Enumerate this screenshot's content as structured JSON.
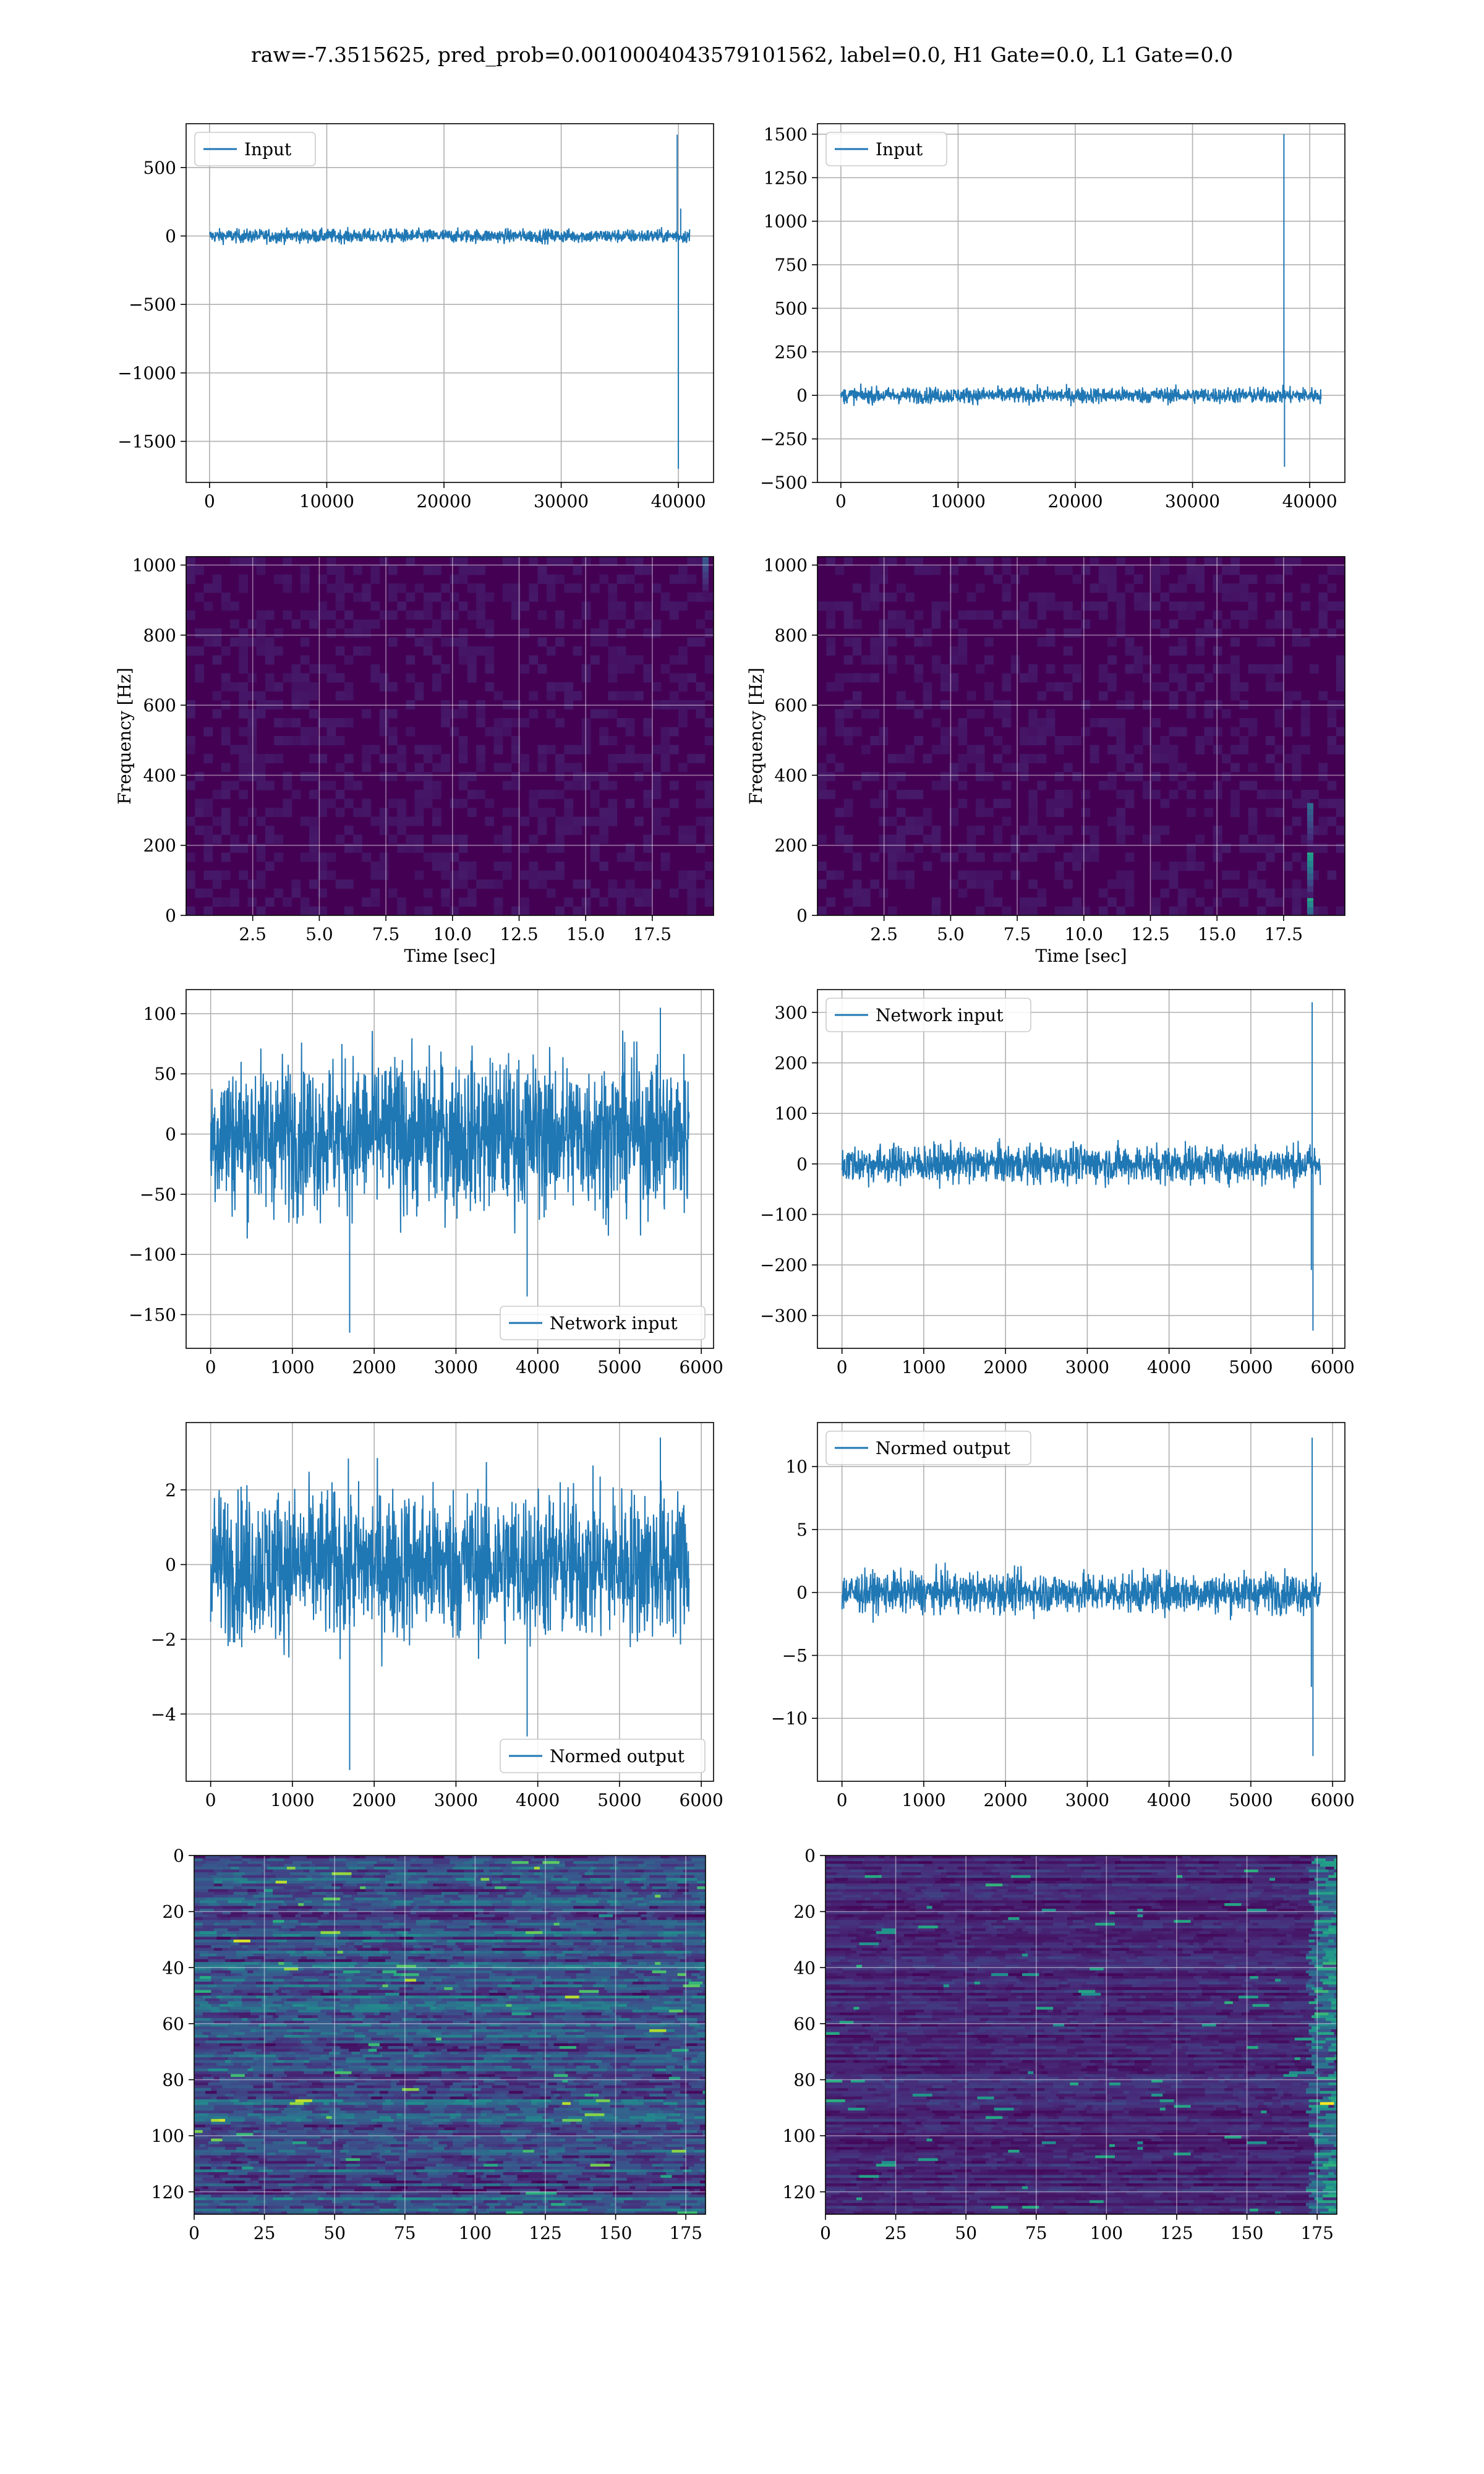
{
  "title": "raw=-7.3515625, pred_prob=0.0010004043579101562, label=0.0, H1 Gate=0.0, L1 Gate=0.0",
  "colors": {
    "line": "#1f77b4",
    "grid": "#b0b0b0",
    "viridis_dark": "#440154",
    "viridis_blue": "#3b528b",
    "viridis_teal": "#21918c",
    "viridis_green": "#5ec962",
    "viridis_yellow": "#fde725"
  },
  "chart_data": [
    {
      "id": "h1-input",
      "type": "line",
      "legend": "upper left",
      "series": [
        {
          "name": "Input",
          "x_range": [
            0,
            40960
          ],
          "noise_amplitude": 60,
          "spikes": [
            {
              "x": 39900,
              "y": 740
            },
            {
              "x": 40000,
              "y": -1700
            },
            {
              "x": 40200,
              "y": 200
            }
          ]
        }
      ],
      "xlim": [
        -2000,
        43000
      ],
      "ylim": [
        -1800,
        820
      ],
      "xticks": [
        0,
        10000,
        20000,
        30000,
        40000
      ],
      "xtick_labels": [
        "0",
        "10000",
        "20000",
        "30000",
        "40000"
      ],
      "yticks": [
        500,
        0,
        -500,
        -1000,
        -1500
      ],
      "ytick_labels": [
        "500",
        "0",
        "−500",
        "−1000",
        "−1500"
      ],
      "xlabel": "",
      "ylabel": ""
    },
    {
      "id": "l1-input",
      "type": "line",
      "legend": "upper left",
      "series": [
        {
          "name": "Input",
          "x_range": [
            0,
            40960
          ],
          "noise_amplitude": 55,
          "spikes": [
            {
              "x": 37800,
              "y": 1500
            },
            {
              "x": 37850,
              "y": -410
            }
          ]
        }
      ],
      "xlim": [
        -2000,
        43000
      ],
      "ylim": [
        -500,
        1560
      ],
      "xticks": [
        0,
        10000,
        20000,
        30000,
        40000
      ],
      "xtick_labels": [
        "0",
        "10000",
        "20000",
        "30000",
        "40000"
      ],
      "yticks": [
        1500,
        1250,
        1000,
        750,
        500,
        250,
        0,
        -250,
        -500
      ],
      "ytick_labels": [
        "1500",
        "1250",
        "1000",
        "750",
        "500",
        "250",
        "0",
        "−250",
        "−500"
      ],
      "xlabel": "",
      "ylabel": ""
    },
    {
      "id": "h1-spectrogram",
      "type": "heatmap",
      "xlim": [
        0,
        19.8
      ],
      "ylim": [
        0,
        1024
      ],
      "xticks": [
        2.5,
        5.0,
        7.5,
        10.0,
        12.5,
        15.0,
        17.5
      ],
      "xtick_labels": [
        "2.5",
        "5.0",
        "7.5",
        "10.0",
        "12.5",
        "15.0",
        "17.5"
      ],
      "yticks": [
        0,
        200,
        400,
        600,
        800,
        1000
      ],
      "ytick_labels": [
        "0",
        "200",
        "400",
        "600",
        "800",
        "1000"
      ],
      "xlabel": "Time [sec]",
      "ylabel": "Frequency [Hz]",
      "hotspots": [
        {
          "t": 19.5,
          "f": 980,
          "intensity": 0.35
        }
      ]
    },
    {
      "id": "l1-spectrogram",
      "type": "heatmap",
      "xlim": [
        0,
        19.8
      ],
      "ylim": [
        0,
        1024
      ],
      "xticks": [
        2.5,
        5.0,
        7.5,
        10.0,
        12.5,
        15.0,
        17.5
      ],
      "xtick_labels": [
        "2.5",
        "5.0",
        "7.5",
        "10.0",
        "12.5",
        "15.0",
        "17.5"
      ],
      "yticks": [
        0,
        200,
        400,
        600,
        800,
        1000
      ],
      "ytick_labels": [
        "0",
        "200",
        "400",
        "600",
        "800",
        "1000"
      ],
      "xlabel": "Time [sec]",
      "ylabel": "Frequency [Hz]",
      "hotspots": [
        {
          "t": 18.5,
          "f": 40,
          "intensity": 0.95
        },
        {
          "t": 18.5,
          "f": 120,
          "intensity": 0.6
        },
        {
          "t": 18.5,
          "f": 250,
          "intensity": 0.35
        }
      ]
    },
    {
      "id": "h1-network-input",
      "type": "line",
      "legend": "lower right",
      "series": [
        {
          "name": "Network input",
          "x_range": [
            0,
            5850
          ],
          "noise_amplitude": 75,
          "spikes": [
            {
              "x": 1700,
              "y": -165
            },
            {
              "x": 3870,
              "y": -135
            },
            {
              "x": 5500,
              "y": 105
            }
          ]
        }
      ],
      "xlim": [
        -300,
        6150
      ],
      "ylim": [
        -178,
        120
      ],
      "xticks": [
        0,
        1000,
        2000,
        3000,
        4000,
        5000,
        6000
      ],
      "xtick_labels": [
        "0",
        "1000",
        "2000",
        "3000",
        "4000",
        "5000",
        "6000"
      ],
      "yticks": [
        100,
        50,
        0,
        -50,
        -100,
        -150
      ],
      "ytick_labels": [
        "100",
        "50",
        "0",
        "−50",
        "−100",
        "−150"
      ],
      "xlabel": "",
      "ylabel": ""
    },
    {
      "id": "l1-network-input",
      "type": "line",
      "legend": "upper left",
      "series": [
        {
          "name": "Network input",
          "x_range": [
            0,
            5850
          ],
          "noise_amplitude": 45,
          "spikes": [
            {
              "x": 5750,
              "y": 320
            },
            {
              "x": 5760,
              "y": -330
            },
            {
              "x": 5740,
              "y": -210
            }
          ]
        }
      ],
      "xlim": [
        -300,
        6150
      ],
      "ylim": [
        -365,
        345
      ],
      "xticks": [
        0,
        1000,
        2000,
        3000,
        4000,
        5000,
        6000
      ],
      "xtick_labels": [
        "0",
        "1000",
        "2000",
        "3000",
        "4000",
        "5000",
        "6000"
      ],
      "yticks": [
        300,
        200,
        100,
        0,
        -100,
        -200,
        -300
      ],
      "ytick_labels": [
        "300",
        "200",
        "100",
        "0",
        "−100",
        "−200",
        "−300"
      ],
      "xlabel": "",
      "ylabel": ""
    },
    {
      "id": "h1-normed-output",
      "type": "line",
      "legend": "lower right",
      "series": [
        {
          "name": "Normed output",
          "x_range": [
            0,
            5850
          ],
          "noise_amplitude": 2.4,
          "spikes": [
            {
              "x": 1700,
              "y": -5.5
            },
            {
              "x": 3870,
              "y": -4.6
            },
            {
              "x": 5500,
              "y": 3.4
            }
          ]
        }
      ],
      "xlim": [
        -300,
        6150
      ],
      "ylim": [
        -5.8,
        3.8
      ],
      "xticks": [
        0,
        1000,
        2000,
        3000,
        4000,
        5000,
        6000
      ],
      "xtick_labels": [
        "0",
        "1000",
        "2000",
        "3000",
        "4000",
        "5000",
        "6000"
      ],
      "yticks": [
        2,
        0,
        -2,
        -4
      ],
      "ytick_labels": [
        "2",
        "0",
        "−2",
        "−4"
      ],
      "xlabel": "",
      "ylabel": ""
    },
    {
      "id": "l1-normed-output",
      "type": "line",
      "legend": "upper left",
      "series": [
        {
          "name": "Normed output",
          "x_range": [
            0,
            5850
          ],
          "noise_amplitude": 1.9,
          "spikes": [
            {
              "x": 5750,
              "y": 12.3
            },
            {
              "x": 5760,
              "y": -13
            },
            {
              "x": 5740,
              "y": -7.5
            }
          ]
        }
      ],
      "xlim": [
        -300,
        6150
      ],
      "ylim": [
        -15,
        13.5
      ],
      "xticks": [
        0,
        1000,
        2000,
        3000,
        4000,
        5000,
        6000
      ],
      "xtick_labels": [
        "0",
        "1000",
        "2000",
        "3000",
        "4000",
        "5000",
        "6000"
      ],
      "yticks": [
        10,
        5,
        0,
        -5,
        -10
      ],
      "ytick_labels": [
        "10",
        "5",
        "0",
        "−5",
        "−10"
      ],
      "xlabel": "",
      "ylabel": ""
    },
    {
      "id": "h1-feature-map",
      "type": "heatmap",
      "xlim": [
        0,
        182
      ],
      "ylim": [
        128,
        0
      ],
      "xticks": [
        0,
        25,
        50,
        75,
        100,
        125,
        150,
        175
      ],
      "xtick_labels": [
        "0",
        "25",
        "50",
        "75",
        "100",
        "125",
        "150",
        "175"
      ],
      "yticks": [
        0,
        20,
        40,
        60,
        80,
        100,
        120
      ],
      "ytick_labels": [
        "0",
        "20",
        "40",
        "60",
        "80",
        "100",
        "120"
      ],
      "xlabel": "",
      "ylabel": "",
      "base_level": 0.28
    },
    {
      "id": "l1-feature-map",
      "type": "heatmap",
      "xlim": [
        0,
        182
      ],
      "ylim": [
        128,
        0
      ],
      "xticks": [
        0,
        25,
        50,
        75,
        100,
        125,
        150,
        175
      ],
      "xtick_labels": [
        "0",
        "25",
        "50",
        "75",
        "100",
        "125",
        "150",
        "175"
      ],
      "yticks": [
        0,
        20,
        40,
        60,
        80,
        100,
        120
      ],
      "ytick_labels": [
        "0",
        "20",
        "40",
        "60",
        "80",
        "100",
        "120"
      ],
      "xlabel": "",
      "ylabel": "",
      "base_level": 0.12
    }
  ]
}
